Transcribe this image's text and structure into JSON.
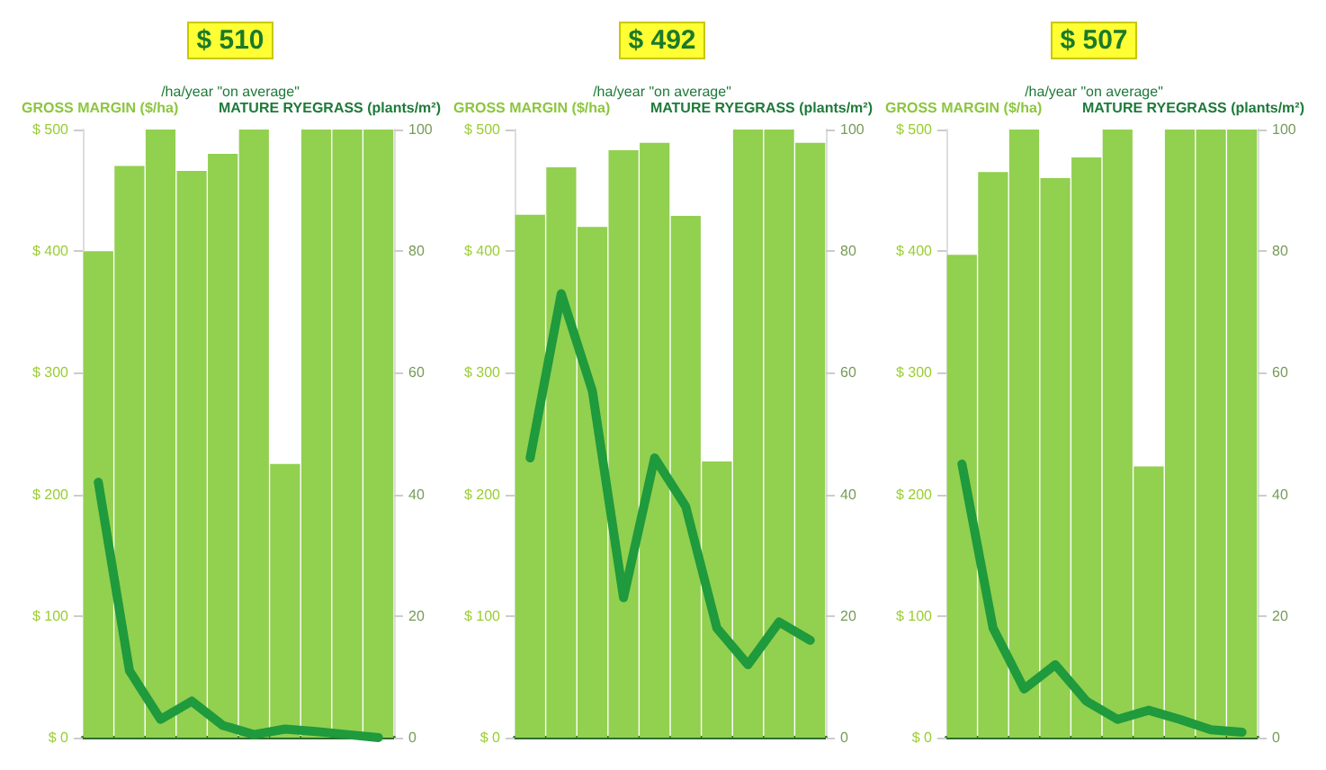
{
  "chart_data": [
    {
      "type": "bar",
      "title": "$ 510",
      "subtitle": "/ha/year \"on average\"",
      "ylabel": "GROSS MARGIN ($/ha)",
      "y2label": "MATURE RYEGRASS (plants/m²)",
      "categories": [
        null,
        null,
        null,
        null,
        null,
        null,
        null,
        null,
        null,
        null
      ],
      "series": [
        {
          "color": "#92d050",
          "values": [
            400,
            470,
            500,
            466,
            480,
            500,
            225,
            500,
            500,
            500
          ]
        },
        {
          "type": "line",
          "axis": "y2",
          "color": "#1f9a3c",
          "values": [
            42,
            11,
            3,
            6,
            2,
            0.5,
            1.4,
            1,
            0.5,
            0
          ]
        }
      ],
      "ylim": [
        0,
        500
      ],
      "yticks": [
        {
          "value": 0,
          "label": "$ 0"
        },
        {
          "value": 100,
          "label": "$ 100"
        },
        {
          "value": 200,
          "label": "$ 200"
        },
        {
          "value": 300,
          "label": "$ 300"
        },
        {
          "value": 400,
          "label": "$ 400"
        },
        {
          "value": 500,
          "label": "$ 500"
        }
      ],
      "y2lim": [
        0,
        100
      ],
      "y2ticks": [
        0,
        20,
        40,
        60,
        80,
        100
      ],
      "grid": false,
      "marker": "none",
      "line_style": "solid"
    },
    {
      "type": "bar",
      "title": "$ 492",
      "subtitle": "/ha/year \"on average\"",
      "ylabel": "GROSS MARGIN ($/ha)",
      "y2label": "MATURE RYEGRASS (plants/m²)",
      "categories": [
        null,
        null,
        null,
        null,
        null,
        null,
        null,
        null,
        null,
        null
      ],
      "series": [
        {
          "color": "#92d050",
          "values": [
            430,
            469,
            420,
            483,
            489,
            429,
            227,
            500,
            500,
            489
          ]
        },
        {
          "type": "line",
          "axis": "y2",
          "color": "#1f9a3c",
          "values": [
            46,
            73,
            57,
            23,
            46,
            38,
            18,
            12,
            19,
            16
          ]
        }
      ],
      "ylim": [
        0,
        500
      ],
      "yticks": [
        {
          "value": 0,
          "label": "$ 0"
        },
        {
          "value": 100,
          "label": "$ 100"
        },
        {
          "value": 200,
          "label": "$ 200"
        },
        {
          "value": 300,
          "label": "$ 300"
        },
        {
          "value": 400,
          "label": "$ 400"
        },
        {
          "value": 500,
          "label": "$ 500"
        }
      ],
      "y2lim": [
        0,
        100
      ],
      "y2ticks": [
        0,
        20,
        40,
        60,
        80,
        100
      ],
      "grid": false,
      "marker": "none",
      "line_style": "solid"
    },
    {
      "type": "bar",
      "title": "$ 507",
      "subtitle": "/ha/year \"on average\"",
      "ylabel": "GROSS MARGIN ($/ha)",
      "y2label": "MATURE RYEGRASS (plants/m²)",
      "categories": [
        null,
        null,
        null,
        null,
        null,
        null,
        null,
        null,
        null,
        null
      ],
      "series": [
        {
          "color": "#92d050",
          "values": [
            397,
            465,
            500,
            460,
            477,
            500,
            223,
            500,
            500,
            500
          ]
        },
        {
          "type": "line",
          "axis": "y2",
          "color": "#1f9a3c",
          "values": [
            45,
            18,
            8,
            12,
            6,
            3,
            4.5,
            3,
            1.3,
            0.9
          ]
        }
      ],
      "ylim": [
        0,
        500
      ],
      "yticks": [
        {
          "value": 0,
          "label": "$ 0"
        },
        {
          "value": 100,
          "label": "$ 100"
        },
        {
          "value": 200,
          "label": "$ 200"
        },
        {
          "value": 300,
          "label": "$ 300"
        },
        {
          "value": 400,
          "label": "$ 400"
        },
        {
          "value": 500,
          "label": "$ 500"
        }
      ],
      "y2lim": [
        0,
        100
      ],
      "y2ticks": [
        0,
        20,
        40,
        60,
        80,
        100
      ],
      "grid": false,
      "marker": "none",
      "line_style": "solid"
    }
  ]
}
